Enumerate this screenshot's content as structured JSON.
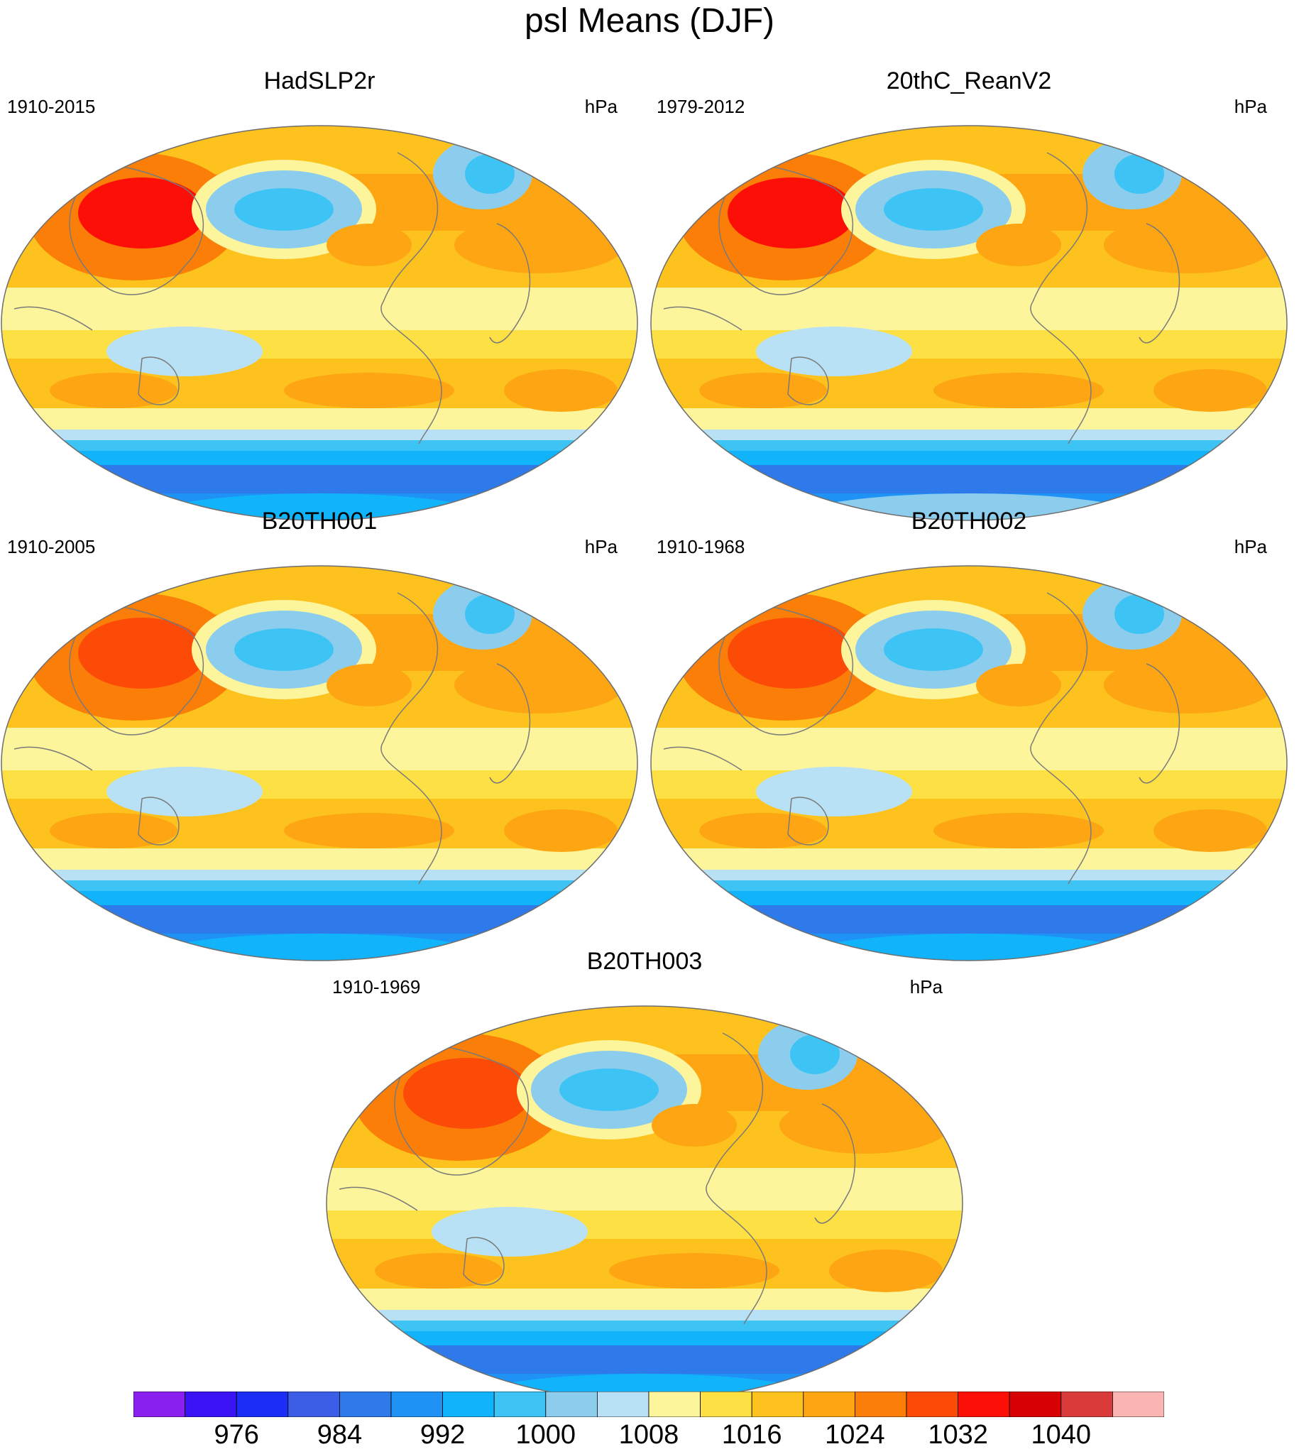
{
  "title": "psl Means (DJF)",
  "colors": {
    "ocean_mid": "#fef39a",
    "land_line": "#7a7a7a",
    "border": "#6e6e6e"
  },
  "panels": [
    {
      "id": "hadslp2r",
      "title": "HadSLP2r",
      "left_label": "1910-2015",
      "right_label": "hPa"
    },
    {
      "id": "20thc",
      "title": "20thC_ReanV2",
      "left_label": "1979-2012",
      "right_label": "hPa"
    },
    {
      "id": "b20th001",
      "title": "B20TH001",
      "left_label": "1910-2005",
      "right_label": "hPa"
    },
    {
      "id": "b20th002",
      "title": "B20TH002",
      "left_label": "1910-1968",
      "right_label": "hPa"
    },
    {
      "id": "b20th003",
      "title": "B20TH003",
      "left_label": "1910-1969",
      "right_label": "hPa"
    }
  ],
  "colorbar": {
    "colors": [
      "#8a20ef",
      "#3a14f5",
      "#1a2ef5",
      "#3c5de6",
      "#2e7aea",
      "#1e93f5",
      "#11b4fb",
      "#3ec3f5",
      "#8ccdee",
      "#b9e1f5",
      "#fdf59b",
      "#fde043",
      "#fdc21d",
      "#fda512",
      "#fb7e08",
      "#fc4a07",
      "#fb0f06",
      "#d60102",
      "#d93a3a",
      "#fbb4b4"
    ],
    "labels": [
      {
        "after_index": 1,
        "text": "976"
      },
      {
        "after_index": 3,
        "text": "984"
      },
      {
        "after_index": 5,
        "text": "992"
      },
      {
        "after_index": 7,
        "text": "1000"
      },
      {
        "after_index": 9,
        "text": "1008"
      },
      {
        "after_index": 11,
        "text": "1016"
      },
      {
        "after_index": 13,
        "text": "1024"
      },
      {
        "after_index": 15,
        "text": "1032"
      },
      {
        "after_index": 17,
        "text": "1040"
      }
    ]
  }
}
